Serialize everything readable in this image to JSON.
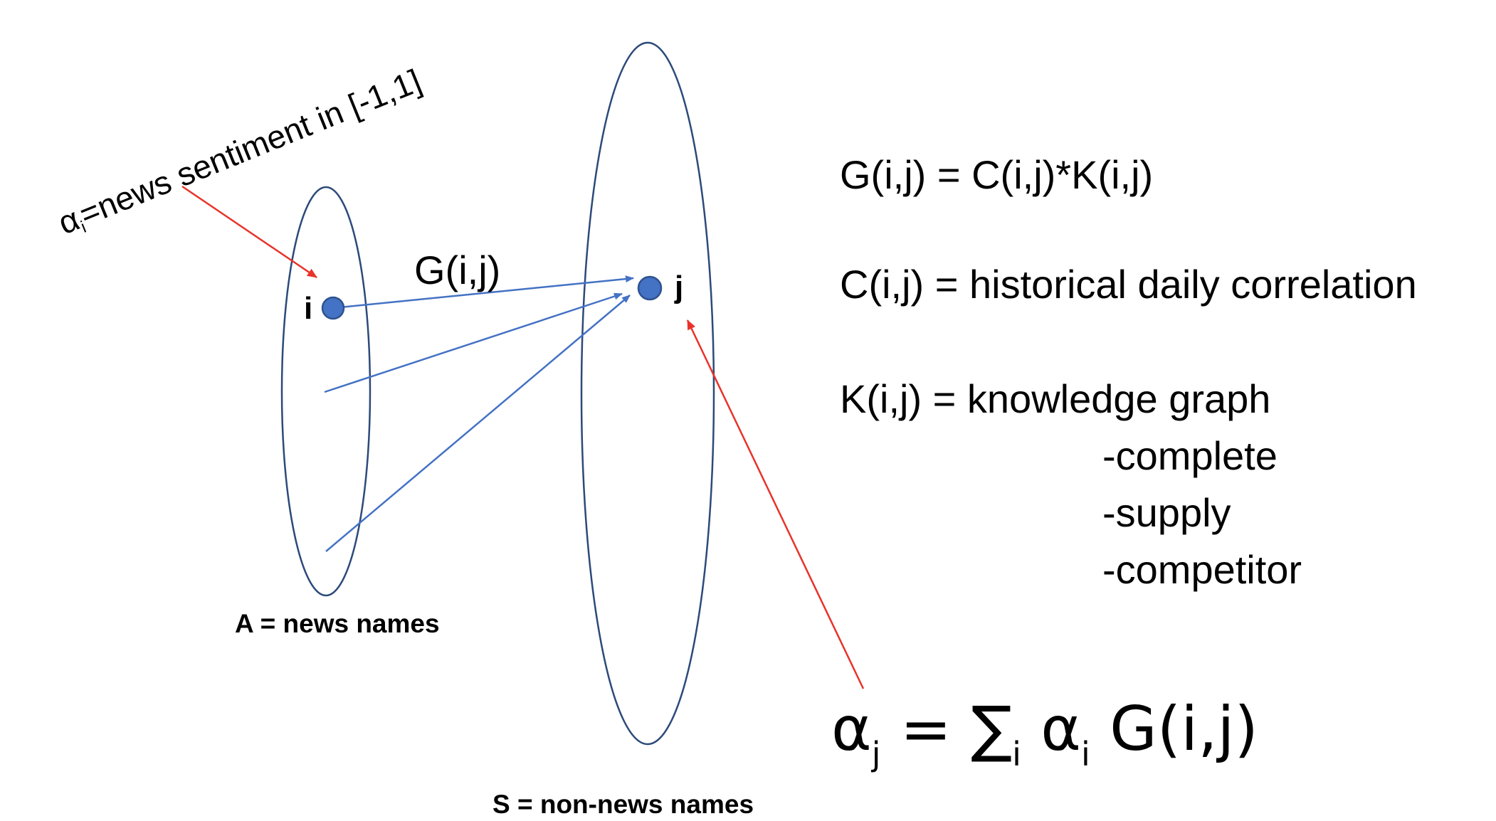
{
  "annotation": {
    "alpha_symbol": "α",
    "alpha_subscript": "i",
    "text": "=news sentiment in [-1,1]"
  },
  "nodes": {
    "i_label": "i",
    "j_label": "j"
  },
  "edge": {
    "label": "G(i,j)"
  },
  "sets": {
    "a_label": "A = news names",
    "s_label": "S = non-news names"
  },
  "definitions": {
    "g_def": "G(i,j) = C(i,j)*K(i,j)",
    "c_def": "C(i,j) = historical daily correlation",
    "k_def": "K(i,j) = knowledge graph",
    "k_types": [
      "-complete",
      "-supply",
      "-competitor"
    ]
  },
  "formula": {
    "lhs_symbol": "α",
    "lhs_subscript": "j",
    "equals": " = ",
    "sum_symbol": "∑",
    "sum_subscript": "i",
    "alpha_symbol": "α",
    "alpha_subscript": "i",
    "rest": " G(i,j)"
  },
  "colors": {
    "ellipse_stroke": "#2c4a7a",
    "node_fill": "#4472c4",
    "node_stroke": "#2f528f",
    "blue_arrow": "#4472c4",
    "red_arrow": "#e8332a"
  }
}
